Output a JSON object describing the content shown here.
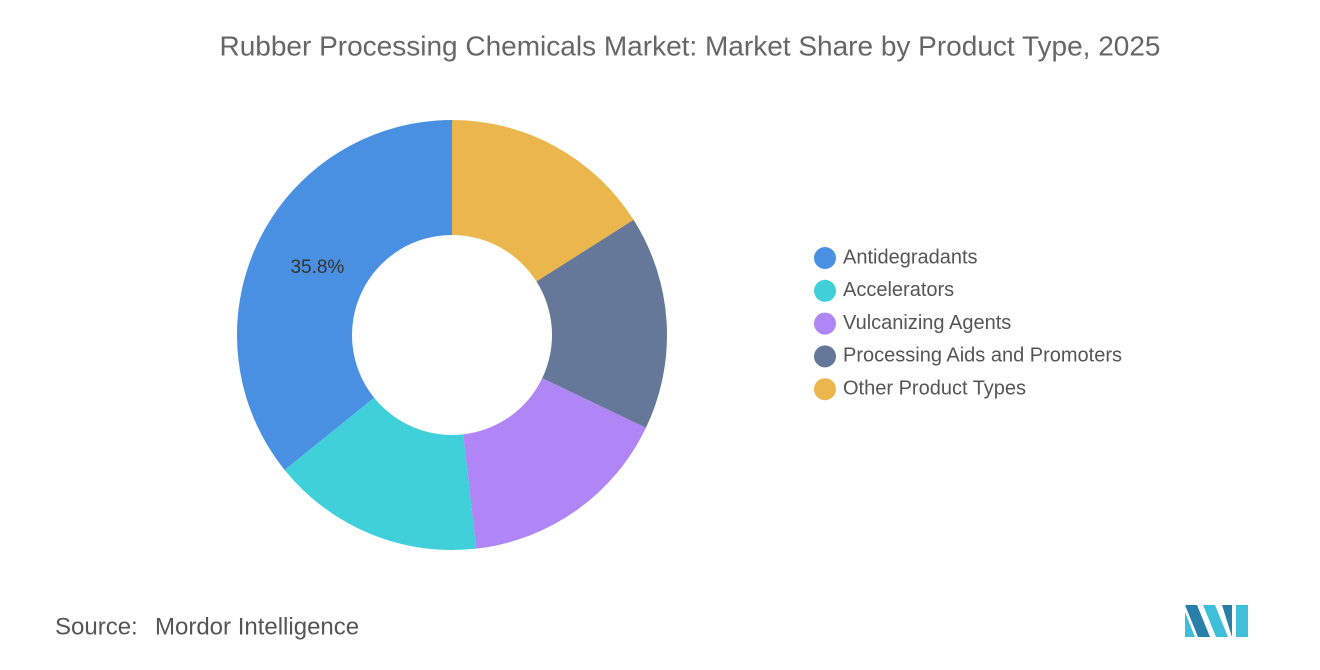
{
  "chart_data": {
    "type": "donut",
    "title": "Rubber Processing Chemicals Market: Market Share by Product Type, 2025",
    "categories": [
      "Antidegradants",
      "Accelerators",
      "Vulcanizing Agents",
      "Processing Aids and Promoters",
      "Other Product Types"
    ],
    "values": [
      35.8,
      16.0,
      16.1,
      16.1,
      16.0
    ],
    "value_labels": [
      "35.8%",
      null,
      null,
      null,
      null
    ],
    "colors": [
      "#4a90e2",
      "#40d0da",
      "#b085f5",
      "#657899",
      "#ebb64c"
    ],
    "legend": "right",
    "source_label": "Source:",
    "source": "Mordor Intelligence"
  }
}
